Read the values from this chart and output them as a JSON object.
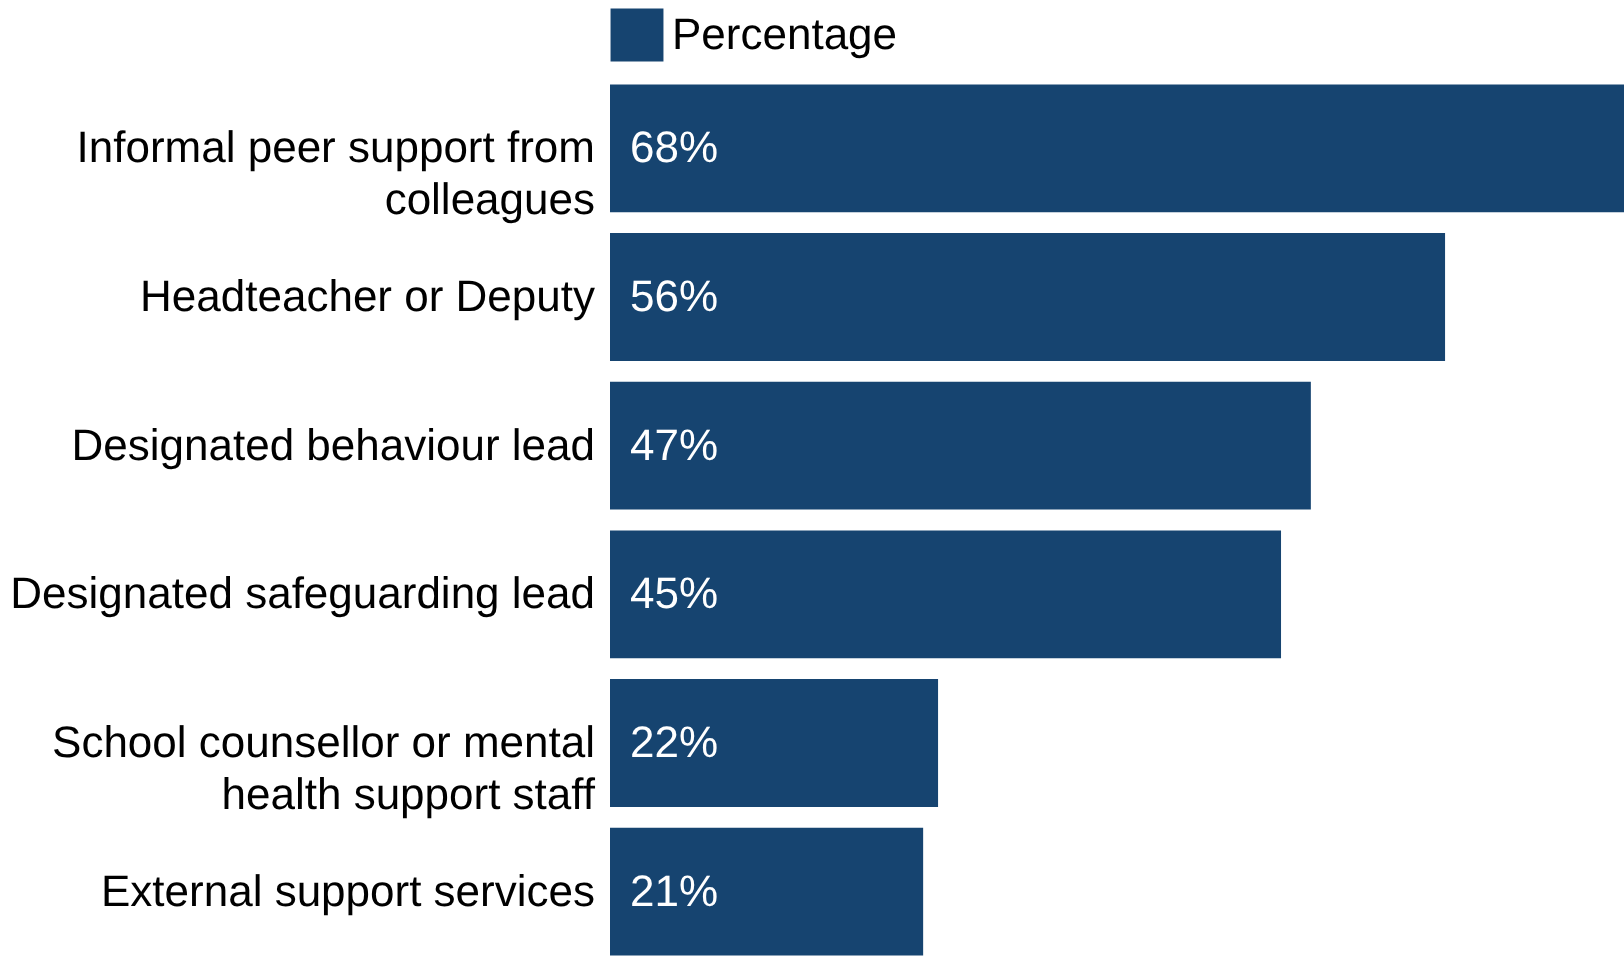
{
  "chart_data": {
    "type": "bar",
    "orientation": "horizontal",
    "legend": "top",
    "categories": [
      "Informal peer support from colleagues",
      "Headteacher or Deputy",
      "Designated behaviour lead",
      "Designated safeguarding lead",
      "School counsellor or mental health support staff",
      "External support services"
    ],
    "series": [
      {
        "name": "Percentage",
        "color": "#164470",
        "values": [
          68,
          56,
          47,
          45,
          22,
          21
        ],
        "value_labels": [
          "68%",
          "56%",
          "47%",
          "45%",
          "22%",
          "21%"
        ]
      }
    ]
  }
}
